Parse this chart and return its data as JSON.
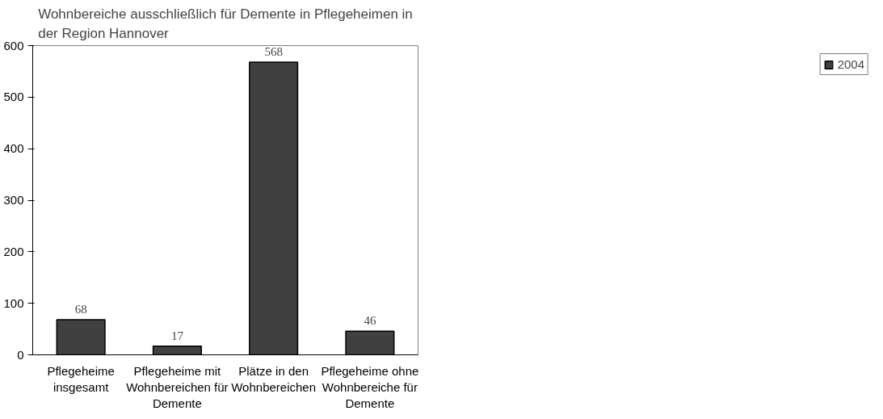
{
  "chart_data": {
    "type": "bar",
    "title": "Wohnbereiche ausschließlich für Demente in Pflegeheimen in der Region Hannover",
    "categories": [
      "Pflegeheime insgesamt",
      "Pflegeheime mit Wohnbereichen für Demente",
      "Plätze in den Wohnbereichen",
      "Pflegeheime ohne Wohnbereiche für Demente"
    ],
    "series": [
      {
        "name": "2004",
        "color": "#404040",
        "values": [
          68,
          17,
          568,
          46
        ]
      }
    ],
    "ylim": [
      0,
      600
    ],
    "yticks": [
      0,
      100,
      200,
      300,
      400,
      500,
      600
    ],
    "grid": false,
    "legend": "right",
    "data_labels": true
  }
}
